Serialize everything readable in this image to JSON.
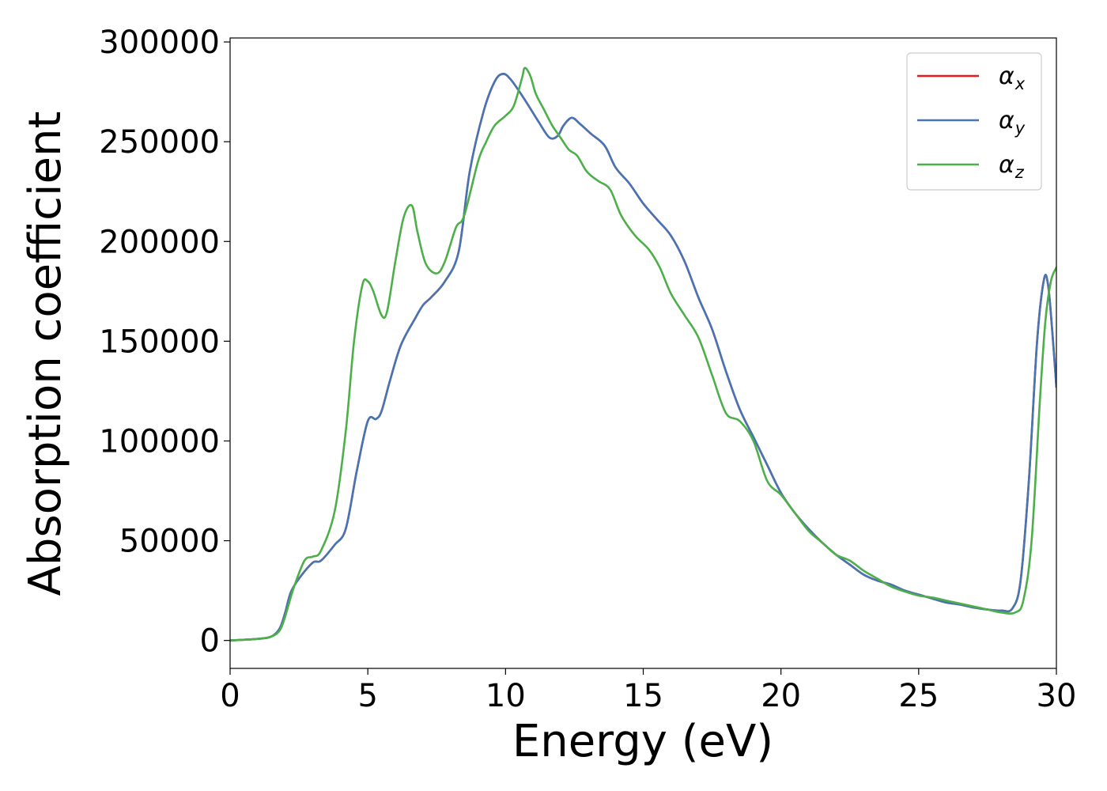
{
  "chart_data": {
    "type": "line",
    "xlabel": "Energy (eV)",
    "ylabel": "Absorption coefficient",
    "xlim": [
      0,
      30
    ],
    "ylim": [
      -14000,
      302000
    ],
    "xticks": [
      "0",
      "5",
      "10",
      "15",
      "20",
      "25",
      "30"
    ],
    "yticks": [
      "0",
      "50000",
      "100000",
      "150000",
      "200000",
      "250000",
      "300000"
    ],
    "grid": false,
    "legend_position": "top-right",
    "series": [
      {
        "name": "α_x",
        "label_main": "α",
        "label_sub": "x",
        "color": "#e41a1c",
        "x": [
          0,
          1,
          1.5,
          1.8,
          2,
          2.2,
          2.5,
          3,
          3.3,
          3.8,
          4.2,
          4.6,
          5,
          5.3,
          5.5,
          5.8,
          6.2,
          6.7,
          7,
          7.3,
          7.8,
          8.3,
          8.7,
          9.2,
          9.6,
          9.9,
          10.2,
          10.7,
          11.2,
          11.6,
          11.9,
          12.1,
          12.4,
          12.7,
          13.1,
          13.6,
          14,
          14.5,
          15,
          15.5,
          16,
          16.5,
          17,
          17.5,
          18,
          18.5,
          19,
          19.5,
          20,
          20.5,
          21,
          21.5,
          22,
          22.5,
          23,
          23.5,
          24,
          24.5,
          25,
          25.5,
          26,
          26.5,
          27,
          27.5,
          28,
          28.4,
          28.7,
          29,
          29.3,
          29.55,
          29.7,
          29.85,
          30
        ],
        "values": [
          0,
          800,
          2000,
          6000,
          14000,
          24000,
          31000,
          39000,
          40000,
          48000,
          56000,
          85000,
          110000,
          111000,
          115000,
          130000,
          148000,
          161000,
          168000,
          172000,
          180000,
          195000,
          235000,
          265000,
          280000,
          284000,
          281000,
          271000,
          260000,
          252000,
          253000,
          258000,
          262000,
          259000,
          254000,
          248000,
          237000,
          229000,
          219000,
          211000,
          203000,
          190000,
          172000,
          156000,
          135000,
          116000,
          102000,
          88000,
          74000,
          64000,
          56000,
          49000,
          43000,
          38000,
          33000,
          30000,
          28000,
          25000,
          23000,
          21000,
          19000,
          18000,
          16500,
          15500,
          15000,
          16000,
          30000,
          80000,
          150000,
          181000,
          178000,
          155000,
          127000
        ]
      },
      {
        "name": "α_y",
        "label_main": "α",
        "label_sub": "y",
        "color": "#4575b4",
        "x": [
          0,
          1,
          1.5,
          1.8,
          2,
          2.2,
          2.5,
          3,
          3.3,
          3.8,
          4.2,
          4.6,
          5,
          5.3,
          5.5,
          5.8,
          6.2,
          6.7,
          7,
          7.3,
          7.8,
          8.3,
          8.7,
          9.2,
          9.6,
          9.9,
          10.2,
          10.7,
          11.2,
          11.6,
          11.9,
          12.1,
          12.4,
          12.7,
          13.1,
          13.6,
          14,
          14.5,
          15,
          15.5,
          16,
          16.5,
          17,
          17.5,
          18,
          18.5,
          19,
          19.5,
          20,
          20.5,
          21,
          21.5,
          22,
          22.5,
          23,
          23.5,
          24,
          24.5,
          25,
          25.5,
          26,
          26.5,
          27,
          27.5,
          28,
          28.4,
          28.7,
          29,
          29.3,
          29.55,
          29.7,
          29.85,
          30
        ],
        "values": [
          0,
          800,
          2000,
          6000,
          14000,
          24000,
          31000,
          39000,
          40000,
          48000,
          56000,
          85000,
          110000,
          111000,
          115000,
          130000,
          148000,
          161000,
          168000,
          172000,
          180000,
          195000,
          235000,
          265000,
          280000,
          284000,
          281000,
          271000,
          260000,
          252000,
          253000,
          258000,
          262000,
          259000,
          254000,
          248000,
          237000,
          229000,
          219000,
          211000,
          203000,
          190000,
          172000,
          156000,
          135000,
          116000,
          102000,
          88000,
          74000,
          64000,
          56000,
          49000,
          43000,
          38000,
          33000,
          30000,
          28000,
          25000,
          23000,
          21000,
          19000,
          18000,
          16500,
          15500,
          15000,
          16000,
          30000,
          80000,
          150000,
          181000,
          178000,
          155000,
          127000
        ]
      },
      {
        "name": "α_z",
        "label_main": "α",
        "label_sub": "z",
        "color": "#4daf4a",
        "x": [
          0,
          1,
          1.5,
          1.8,
          2,
          2.3,
          2.7,
          3,
          3.3,
          3.8,
          4.2,
          4.5,
          4.8,
          5,
          5.2,
          5.5,
          5.7,
          6,
          6.3,
          6.6,
          6.8,
          7.1,
          7.5,
          7.8,
          8.2,
          8.5,
          9,
          9.3,
          9.6,
          10,
          10.3,
          10.6,
          10.7,
          10.9,
          11.1,
          11.4,
          11.7,
          12,
          12.3,
          12.6,
          12.9,
          13.1,
          13.4,
          13.8,
          14.2,
          14.7,
          15.2,
          15.6,
          16,
          16.5,
          17,
          17.5,
          18,
          18.5,
          19,
          19.5,
          20,
          20.5,
          21,
          21.5,
          22,
          22.5,
          23,
          23.5,
          24,
          24.5,
          25,
          25.5,
          26,
          26.5,
          27,
          27.5,
          28,
          28.5,
          28.8,
          29.1,
          29.4,
          29.6,
          29.8,
          30
        ],
        "values": [
          0,
          800,
          2000,
          5000,
          12000,
          26000,
          40000,
          42000,
          45000,
          65000,
          105000,
          150000,
          178000,
          180000,
          175000,
          163000,
          165000,
          190000,
          212000,
          218000,
          205000,
          189000,
          184000,
          190000,
          207000,
          213000,
          240000,
          250000,
          258000,
          263000,
          268000,
          282000,
          287000,
          283000,
          274000,
          266000,
          258000,
          252000,
          246000,
          243000,
          236000,
          233000,
          230000,
          226000,
          213000,
          203000,
          196000,
          187000,
          174000,
          163000,
          152000,
          133000,
          114000,
          110000,
          100000,
          80000,
          73000,
          64000,
          55000,
          49000,
          43000,
          40000,
          35000,
          31000,
          27000,
          24500,
          22500,
          21500,
          20000,
          18500,
          17000,
          15500,
          14000,
          14000,
          20000,
          50000,
          120000,
          160000,
          180000,
          187000
        ]
      }
    ]
  }
}
